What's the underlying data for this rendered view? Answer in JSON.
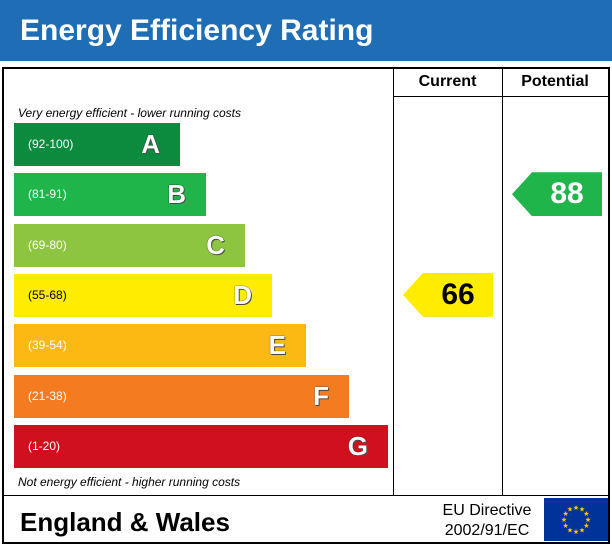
{
  "title": "Energy Efficiency Rating",
  "columns": {
    "current": "Current",
    "potential": "Potential"
  },
  "notes": {
    "top": "Very energy efficient - lower running costs",
    "bottom": "Not energy efficient - higher running costs"
  },
  "footer": {
    "region": "England & Wales",
    "directive_line1": "EU Directive",
    "directive_line2": "2002/91/EC"
  },
  "colors": {
    "header": "#1f6db5",
    "A": "#0c8a3e",
    "B": "#20b54a",
    "C": "#8dc540",
    "D": "#ffec00",
    "E": "#fcb913",
    "F": "#f47b20",
    "G": "#d0101e"
  },
  "chart_data": {
    "type": "bar",
    "bands": [
      {
        "letter": "A",
        "range": "(92-100)",
        "min": 92,
        "max": 100,
        "color": "#0c8a3e"
      },
      {
        "letter": "B",
        "range": "(81-91)",
        "min": 81,
        "max": 91,
        "color": "#20b54a"
      },
      {
        "letter": "C",
        "range": "(69-80)",
        "min": 69,
        "max": 80,
        "color": "#8dc540"
      },
      {
        "letter": "D",
        "range": "(55-68)",
        "min": 55,
        "max": 68,
        "color": "#ffec00"
      },
      {
        "letter": "E",
        "range": "(39-54)",
        "min": 39,
        "max": 54,
        "color": "#fcb913"
      },
      {
        "letter": "F",
        "range": "(21-38)",
        "min": 21,
        "max": 38,
        "color": "#f47b20"
      },
      {
        "letter": "G",
        "range": "(1-20)",
        "min": 1,
        "max": 20,
        "color": "#d0101e"
      }
    ],
    "current": {
      "value": 66,
      "band": "D",
      "color": "#ffec00"
    },
    "potential": {
      "value": 88,
      "band": "B",
      "color": "#20b54a"
    }
  }
}
